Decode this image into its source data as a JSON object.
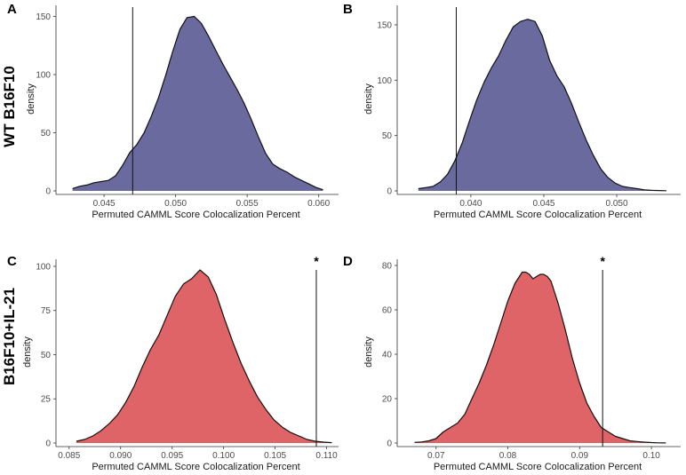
{
  "row_labels": [
    "WT B16F10",
    "B16F10+IL-21"
  ],
  "chart_data": [
    {
      "type": "area",
      "panel": "A",
      "xlabel": "Permuted CAMML Score Colocalization Percent",
      "ylabel": "density",
      "xlim": [
        0.0422,
        0.0612
      ],
      "ylim": [
        0,
        158
      ],
      "xticks": [
        0.045,
        0.05,
        0.055,
        0.06
      ],
      "xtick_labels": [
        "0.045",
        "0.050",
        "0.055",
        "0.060"
      ],
      "yticks": [
        0,
        50,
        100,
        150
      ],
      "ytick_labels": [
        "0",
        "50",
        "100",
        "150"
      ],
      "fill_color": "#6a6a9e",
      "observed_value": 0.047,
      "significance_marker": "",
      "x": [
        0.0428,
        0.0433,
        0.0438,
        0.0443,
        0.0448,
        0.0453,
        0.0458,
        0.0463,
        0.0468,
        0.0473,
        0.0478,
        0.0483,
        0.0488,
        0.0493,
        0.0498,
        0.0503,
        0.0508,
        0.0513,
        0.0518,
        0.0523,
        0.0528,
        0.0533,
        0.0538,
        0.0543,
        0.0548,
        0.0553,
        0.0558,
        0.0563,
        0.0568,
        0.0573,
        0.0578,
        0.0583,
        0.0588,
        0.0593,
        0.0598,
        0.0603
      ],
      "y": [
        2,
        4,
        5,
        7,
        8,
        9,
        13,
        22,
        33,
        40,
        50,
        64,
        80,
        99,
        120,
        139,
        149,
        150,
        144,
        133,
        121,
        109,
        98,
        87,
        75,
        61,
        46,
        32,
        23,
        19,
        16,
        12,
        9,
        6,
        3,
        1
      ]
    },
    {
      "type": "area",
      "panel": "B",
      "xlabel": "Permuted CAMML Score Colocalization Percent",
      "ylabel": "density",
      "xlim": [
        0.0355,
        0.0542
      ],
      "ylim": [
        0,
        166
      ],
      "xticks": [
        0.04,
        0.045,
        0.05
      ],
      "xtick_labels": [
        "0.040",
        "0.045",
        "0.050"
      ],
      "yticks": [
        0,
        50,
        100,
        150
      ],
      "ytick_labels": [
        "0",
        "50",
        "100",
        "150"
      ],
      "fill_color": "#6a6a9e",
      "observed_value": 0.039,
      "significance_marker": "",
      "x": [
        0.0364,
        0.0369,
        0.0374,
        0.0379,
        0.0384,
        0.0389,
        0.0394,
        0.0399,
        0.0404,
        0.0409,
        0.0414,
        0.0419,
        0.0424,
        0.0429,
        0.0434,
        0.0439,
        0.0444,
        0.0449,
        0.0454,
        0.0459,
        0.0464,
        0.0469,
        0.0474,
        0.0479,
        0.0484,
        0.0489,
        0.0494,
        0.0499,
        0.0504,
        0.0509,
        0.0514,
        0.0519,
        0.0524,
        0.0529,
        0.0534
      ],
      "y": [
        2,
        3,
        4,
        8,
        15,
        27,
        43,
        63,
        82,
        98,
        111,
        122,
        136,
        148,
        153,
        155,
        153,
        140,
        118,
        104,
        94,
        79,
        62,
        46,
        32,
        20,
        12,
        7,
        4,
        3,
        2,
        1,
        0.5,
        0.3,
        0.2
      ]
    },
    {
      "type": "area",
      "panel": "C",
      "xlabel": "Permuted CAMML Score Colocalization Percent",
      "ylabel": "density",
      "xlim": [
        0.0845,
        0.1109
      ],
      "ylim": [
        0,
        103
      ],
      "xticks": [
        0.085,
        0.09,
        0.095,
        0.1,
        0.105,
        0.11
      ],
      "xtick_labels": [
        "0.085",
        "0.090",
        "0.095",
        "0.100",
        "0.105",
        "0.110"
      ],
      "yticks": [
        0,
        25,
        50,
        75,
        100
      ],
      "ytick_labels": [
        "0",
        "25",
        "50",
        "75",
        "100"
      ],
      "fill_color": "#de6467",
      "observed_value": 0.109,
      "significance_marker": "*",
      "x": [
        0.0857,
        0.0865,
        0.0873,
        0.0881,
        0.0889,
        0.0897,
        0.0905,
        0.0913,
        0.0921,
        0.0929,
        0.0937,
        0.0945,
        0.0953,
        0.0961,
        0.0969,
        0.0977,
        0.0985,
        0.0993,
        0.1001,
        0.1009,
        0.1017,
        0.1025,
        0.1033,
        0.1041,
        0.1049,
        0.1057,
        0.1065,
        0.1073,
        0.1081,
        0.1089,
        0.1097,
        0.1105
      ],
      "y": [
        1,
        2,
        4,
        7,
        11,
        16,
        23,
        32,
        43,
        53,
        61,
        72,
        83,
        90,
        93,
        98,
        94,
        84,
        70,
        57,
        45,
        35,
        26,
        19,
        13,
        9,
        6,
        4,
        2,
        1,
        0.5,
        0.2
      ]
    },
    {
      "type": "area",
      "panel": "D",
      "xlabel": "Permuted CAMML Score Colocalization Percent",
      "ylabel": "density",
      "xlim": [
        0.0657,
        0.1037
      ],
      "ylim": [
        0,
        82
      ],
      "xticks": [
        0.07,
        0.08,
        0.09,
        0.1
      ],
      "xtick_labels": [
        "0.07",
        "0.08",
        "0.09",
        "0.10"
      ],
      "yticks": [
        0,
        20,
        40,
        60,
        80
      ],
      "ytick_labels": [
        "0",
        "20",
        "40",
        "60",
        "80"
      ],
      "fill_color": "#de6467",
      "observed_value": 0.0932,
      "significance_marker": "*",
      "x": [
        0.067,
        0.068,
        0.069,
        0.07,
        0.071,
        0.072,
        0.073,
        0.074,
        0.075,
        0.076,
        0.077,
        0.078,
        0.079,
        0.08,
        0.081,
        0.082,
        0.0825,
        0.083,
        0.0835,
        0.084,
        0.0845,
        0.085,
        0.0855,
        0.086,
        0.087,
        0.088,
        0.089,
        0.09,
        0.091,
        0.092,
        0.093,
        0.094,
        0.095,
        0.096,
        0.097,
        0.098,
        0.099,
        0.1,
        0.101,
        0.102
      ],
      "y": [
        0.3,
        0.5,
        1,
        2,
        5,
        7,
        9,
        13,
        20,
        27,
        35,
        44,
        54,
        64,
        72,
        77,
        77,
        76,
        74,
        75,
        76,
        76,
        75,
        73,
        63,
        51,
        38,
        27,
        18,
        12,
        7,
        5,
        3,
        2,
        1,
        0.7,
        0.4,
        0.2,
        0.1,
        0.05
      ]
    }
  ]
}
